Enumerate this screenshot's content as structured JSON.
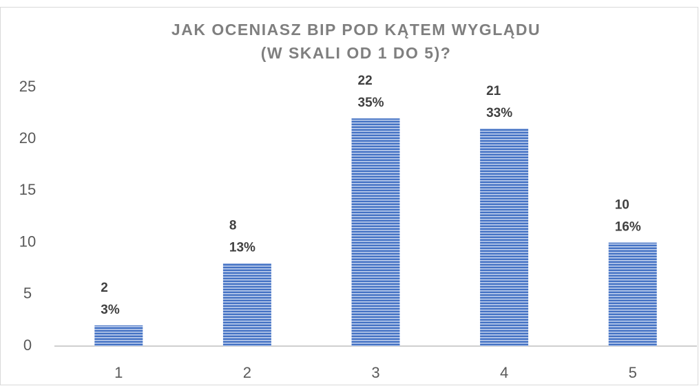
{
  "chart_data": {
    "type": "bar",
    "title": [
      "JAK OCENIASZ BIP POD KĄTEM WYGLĄDU",
      "(W SKALI OD 1 DO 5)?"
    ],
    "categories": [
      "1",
      "2",
      "3",
      "4",
      "5"
    ],
    "values": [
      2,
      8,
      22,
      21,
      10
    ],
    "share_labels": [
      "3%",
      "13%",
      "35%",
      "33%",
      "16%"
    ],
    "color": "#4472c4",
    "ylim": [
      0,
      25
    ],
    "yticks": [
      0,
      5,
      10,
      15,
      20,
      25
    ],
    "grid": false
  }
}
